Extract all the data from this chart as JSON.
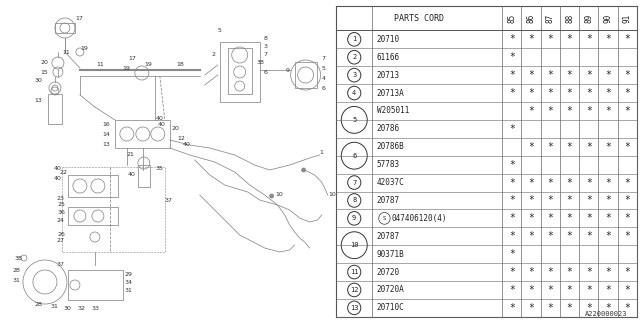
{
  "diagram_id": "A220000023",
  "table": {
    "rows": [
      {
        "num": "1",
        "part": "20710",
        "marks": [
          1,
          1,
          1,
          1,
          1,
          1,
          1
        ],
        "group": null
      },
      {
        "num": "2",
        "part": "61166",
        "marks": [
          1,
          0,
          0,
          0,
          0,
          0,
          0
        ],
        "group": null
      },
      {
        "num": "3",
        "part": "20713",
        "marks": [
          1,
          1,
          1,
          1,
          1,
          1,
          1
        ],
        "group": null
      },
      {
        "num": "4",
        "part": "20713A",
        "marks": [
          1,
          1,
          1,
          1,
          1,
          1,
          1
        ],
        "group": null
      },
      {
        "num": "5",
        "part": "W205011",
        "marks": [
          0,
          1,
          1,
          1,
          1,
          1,
          1
        ],
        "group": "5_top"
      },
      {
        "num": "5",
        "part": "20786",
        "marks": [
          1,
          0,
          0,
          0,
          0,
          0,
          0
        ],
        "group": "5_bot"
      },
      {
        "num": "6",
        "part": "20786B",
        "marks": [
          0,
          1,
          1,
          1,
          1,
          1,
          1
        ],
        "group": "6_top"
      },
      {
        "num": "6",
        "part": "57783",
        "marks": [
          1,
          0,
          0,
          0,
          0,
          0,
          0
        ],
        "group": "6_bot"
      },
      {
        "num": "7",
        "part": "42037C",
        "marks": [
          1,
          1,
          1,
          1,
          1,
          1,
          1
        ],
        "group": null
      },
      {
        "num": "8",
        "part": "20787",
        "marks": [
          1,
          1,
          1,
          1,
          1,
          1,
          1
        ],
        "group": null
      },
      {
        "num": "9",
        "part": "047406120(4)",
        "marks": [
          1,
          1,
          1,
          1,
          1,
          1,
          1
        ],
        "group": null,
        "s_prefix": true
      },
      {
        "num": "10",
        "part": "20787",
        "marks": [
          1,
          1,
          1,
          1,
          1,
          1,
          1
        ],
        "group": "10_top"
      },
      {
        "num": "10",
        "part": "90371B",
        "marks": [
          1,
          0,
          0,
          0,
          0,
          0,
          0
        ],
        "group": "10_bot"
      },
      {
        "num": "11",
        "part": "20720",
        "marks": [
          1,
          1,
          1,
          1,
          1,
          1,
          1
        ],
        "group": null
      },
      {
        "num": "12",
        "part": "20720A",
        "marks": [
          1,
          1,
          1,
          1,
          1,
          1,
          1
        ],
        "group": null
      },
      {
        "num": "13",
        "part": "20710C",
        "marks": [
          1,
          1,
          1,
          1,
          1,
          1,
          1
        ],
        "group": null
      }
    ],
    "year_cols": [
      "85",
      "86",
      "87",
      "88",
      "89",
      "90",
      "91"
    ]
  },
  "lc": "#888888",
  "tc": "#333333"
}
